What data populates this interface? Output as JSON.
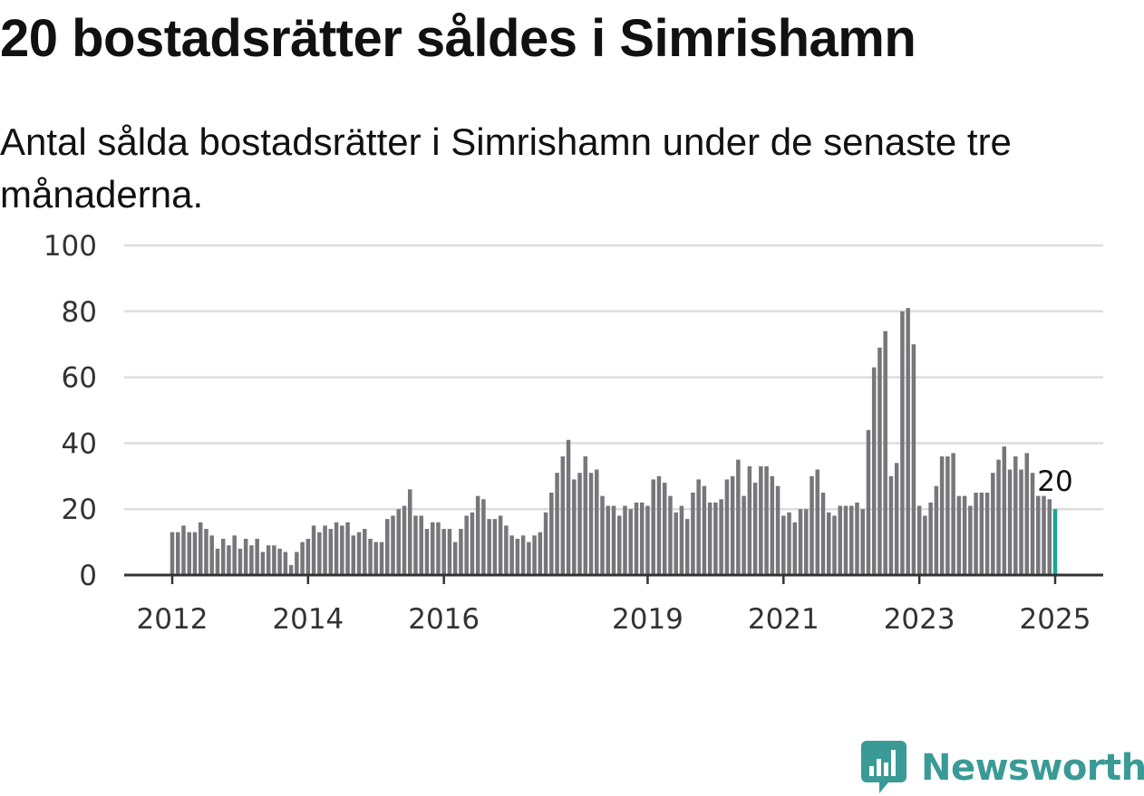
{
  "header": {
    "title": "20 bostadsrätter såldes i Simrishamn",
    "subtitle": "Antal sålda bostadsrätter i Simrishamn under de senaste tre månaderna."
  },
  "brand": {
    "name": "Newsworthy",
    "color": "#3a9a96"
  },
  "chart_data": {
    "type": "bar",
    "title": "20 bostadsrätter såldes i Simrishamn",
    "subtitle": "Antal sålda bostadsrätter i Simrishamn under de senaste tre månaderna.",
    "xlabel": "",
    "ylabel": "",
    "ylim": [
      0,
      100
    ],
    "yticks": [
      0,
      20,
      40,
      60,
      80,
      100
    ],
    "grid": true,
    "x_start": "2012-01",
    "x_end": "2025-01",
    "xtick_labels": [
      {
        "label": "2012",
        "month": "2012-01"
      },
      {
        "label": "2014",
        "month": "2014-01"
      },
      {
        "label": "2016",
        "month": "2016-01"
      },
      {
        "label": "2019",
        "month": "2019-01"
      },
      {
        "label": "2021",
        "month": "2021-01"
      },
      {
        "label": "2023",
        "month": "2023-01"
      },
      {
        "label": "2025",
        "month": "2025-01"
      }
    ],
    "colors": {
      "bar": "#76767b",
      "highlight": "#1aa398",
      "grid": "#dddddd",
      "axis": "#333333"
    },
    "highlight_label": "20",
    "series": [
      {
        "values": [
          13,
          13,
          15,
          13,
          13,
          16,
          14,
          12,
          8,
          11,
          9,
          12,
          8,
          11,
          9,
          11,
          7,
          9,
          9,
          8,
          7,
          3,
          7,
          10,
          11,
          15,
          13,
          15,
          14,
          16,
          15,
          16,
          12,
          13,
          14,
          11,
          10,
          10,
          17,
          18,
          20,
          21,
          26,
          18,
          18,
          14,
          16,
          16,
          14,
          14,
          10,
          14,
          18,
          19,
          24,
          23,
          17,
          17,
          18,
          15,
          12,
          11,
          12,
          10,
          12,
          13,
          19,
          25,
          31,
          36,
          41,
          29,
          31,
          36,
          31,
          32,
          24,
          21,
          21,
          18,
          21,
          20,
          22,
          22,
          21,
          29,
          30,
          28,
          24,
          19,
          21,
          17,
          25,
          29,
          27,
          22,
          22,
          23,
          29,
          30,
          35,
          24,
          33,
          28,
          33,
          33,
          30,
          27,
          18,
          19,
          16,
          20,
          20,
          30,
          32,
          25,
          19,
          18,
          21,
          21,
          21,
          22,
          20,
          44,
          63,
          69,
          74,
          30,
          34,
          80,
          81,
          70,
          21,
          18,
          22,
          27,
          36,
          36,
          37,
          24,
          24,
          21,
          25,
          25,
          25,
          31,
          35,
          39,
          32,
          36,
          32,
          37,
          31,
          24,
          24,
          23,
          20
        ]
      }
    ]
  }
}
